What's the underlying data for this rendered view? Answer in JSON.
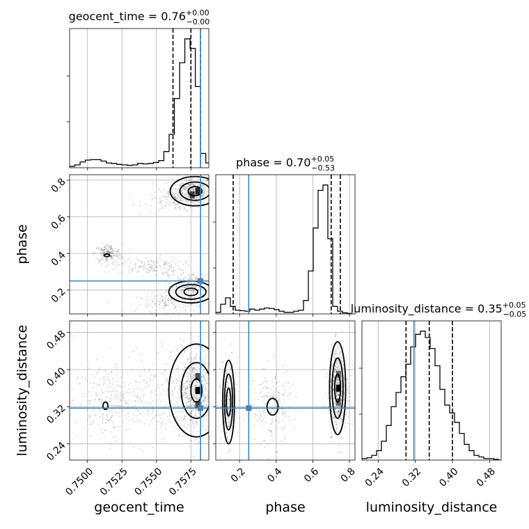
{
  "chart_data": {
    "type": "corner",
    "parameters": [
      "geocent_time",
      "phase",
      "luminosity_distance"
    ],
    "axis_labels": [
      "geocent_time",
      "phase",
      "luminosity_distance"
    ],
    "ranges": [
      [
        0.7487,
        0.7588
      ],
      [
        0.07,
        0.83
      ],
      [
        0.205,
        0.505
      ]
    ],
    "ticks": [
      {
        "values": [
          0.75,
          0.7525,
          0.755,
          0.7575
        ],
        "labels": [
          "0.7500",
          "0.7525",
          "0.7550",
          "0.7575"
        ]
      },
      {
        "values": [
          0.2,
          0.4,
          0.6,
          0.8
        ],
        "labels": [
          "0.2",
          "0.4",
          "0.6",
          "0.8"
        ]
      },
      {
        "values": [
          0.24,
          0.32,
          0.4,
          0.48
        ],
        "labels": [
          "0.24",
          "0.32",
          "0.40",
          "0.48"
        ]
      }
    ],
    "titles": [
      {
        "text": "geocent_time = 0.76",
        "sup": "+0.00",
        "sub": "−0.00"
      },
      {
        "text": "phase = 0.70",
        "sup": "+0.05",
        "sub": "−0.53"
      },
      {
        "text": "luminosity_distance = 0.35",
        "sup": "+0.05",
        "sub": "−0.05"
      }
    ],
    "truths": [
      0.7582,
      0.25,
      0.317
    ],
    "quantiles": [
      [
        0.7562,
        0.7575,
        0.7582
      ],
      [
        0.165,
        0.7,
        0.75
      ],
      [
        0.3,
        0.35,
        0.4
      ]
    ],
    "histograms": [
      {
        "bin_edges_from": 0.7487,
        "bin_width": 0.00038,
        "counts": [
          0.3,
          0.6,
          1.2,
          1.6,
          1.7,
          1.7,
          1.4,
          1.0,
          0.9,
          0.7,
          0.6,
          0.5,
          0.6,
          0.9,
          0.8,
          0.9,
          1.1,
          1.5,
          3.4,
          7.0,
          14.5,
          22.0,
          27.0,
          25.0,
          17.0,
          3.0,
          1.0
        ]
      },
      {
        "bin_edges_from": 0.07,
        "bin_width": 0.0266,
        "counts": [
          0.3,
          1.8,
          3.0,
          1.4,
          0.7,
          0.6,
          0.5,
          0.9,
          0.7,
          0.9,
          1.1,
          1.0,
          0.8,
          0.5,
          0.3,
          0.3,
          0.5,
          0.7,
          2.5,
          8.0,
          16.0,
          23.0,
          24.0,
          14.0,
          1.4,
          0.5,
          0.2,
          0.1
        ]
      },
      {
        "bin_edges_from": 0.205,
        "bin_width": 0.0105,
        "counts": [
          0.1,
          0.15,
          0.3,
          0.6,
          1.2,
          2.2,
          3.4,
          4.3,
          5.3,
          6.1,
          7.2,
          8.0,
          8.2,
          7.8,
          7.1,
          6.0,
          4.5,
          3.5,
          3.0,
          2.4,
          1.7,
          1.0,
          0.6,
          0.3,
          0.2,
          0.1,
          0.1,
          0.05,
          0.0
        ]
      }
    ],
    "sample_clusters": [
      {
        "pair": [
          0,
          1
        ],
        "cx": 0.7575,
        "cy": 0.74,
        "sx": 0.0008,
        "sy": 0.04,
        "n": 380
      },
      {
        "pair": [
          0,
          1
        ],
        "cx": 0.7565,
        "cy": 0.69,
        "sx": 0.0012,
        "sy": 0.03,
        "n": 120
      },
      {
        "pair": [
          0,
          1
        ],
        "cx": 0.7515,
        "cy": 0.4,
        "sx": 0.0005,
        "sy": 0.025,
        "n": 180
      },
      {
        "pair": [
          0,
          1
        ],
        "cx": 0.7545,
        "cy": 0.33,
        "sx": 0.0012,
        "sy": 0.025,
        "n": 160
      },
      {
        "pair": [
          0,
          1
        ],
        "cx": 0.7575,
        "cy": 0.22,
        "sx": 0.0008,
        "sy": 0.04,
        "n": 220
      },
      {
        "pair": [
          0,
          1
        ],
        "cx": 0.756,
        "cy": 0.13,
        "sx": 0.0012,
        "sy": 0.025,
        "n": 150
      },
      {
        "pair": [
          0,
          2
        ],
        "cx": 0.7578,
        "cy": 0.355,
        "sx": 0.0007,
        "sy": 0.045,
        "n": 700
      },
      {
        "pair": [
          0,
          2
        ],
        "cx": 0.7514,
        "cy": 0.33,
        "sx": 0.0012,
        "sy": 0.04,
        "n": 260
      },
      {
        "pair": [
          0,
          2
        ],
        "cx": 0.7545,
        "cy": 0.34,
        "sx": 0.0014,
        "sy": 0.05,
        "n": 180
      },
      {
        "pair": [
          1,
          2
        ],
        "cx": 0.735,
        "cy": 0.36,
        "sx": 0.025,
        "sy": 0.045,
        "n": 700
      },
      {
        "pair": [
          1,
          2
        ],
        "cx": 0.14,
        "cy": 0.33,
        "sx": 0.02,
        "sy": 0.045,
        "n": 300
      },
      {
        "pair": [
          1,
          2
        ],
        "cx": 0.38,
        "cy": 0.32,
        "sx": 0.05,
        "sy": 0.04,
        "n": 230
      }
    ],
    "contours": [
      {
        "pair": [
          0,
          1
        ],
        "cx": 0.7578,
        "cy": 0.74,
        "rx": [
          0.0005,
          0.0011,
          0.0018
        ],
        "ry": [
          0.025,
          0.05,
          0.08
        ]
      },
      {
        "pair": [
          0,
          1
        ],
        "cx": 0.7575,
        "cy": 0.19,
        "rx": [
          0.0005,
          0.0011,
          0.0016
        ],
        "ry": [
          0.02,
          0.04,
          0.06
        ]
      },
      {
        "pair": [
          0,
          1
        ],
        "cx": 0.7514,
        "cy": 0.39,
        "rx": [
          0.0002
        ],
        "ry": [
          0.007
        ]
      },
      {
        "pair": [
          0,
          2
        ],
        "cx": 0.7579,
        "cy": 0.355,
        "rx": [
          0.0004,
          0.0011,
          0.002
        ],
        "ry": [
          0.025,
          0.06,
          0.1
        ]
      },
      {
        "pair": [
          0,
          2
        ],
        "cx": 0.7513,
        "cy": 0.322,
        "rx": [
          0.00018
        ],
        "ry": [
          0.008
        ]
      },
      {
        "pair": [
          1,
          2
        ],
        "cx": 0.735,
        "cy": 0.36,
        "rx": [
          0.016,
          0.03,
          0.044
        ],
        "ry": [
          0.03,
          0.065,
          0.1
        ]
      },
      {
        "pair": [
          1,
          2
        ],
        "cx": 0.14,
        "cy": 0.33,
        "rx": [
          0.012,
          0.022,
          0.032
        ],
        "ry": [
          0.03,
          0.06,
          0.09
        ]
      },
      {
        "pair": [
          1,
          2
        ],
        "cx": 0.38,
        "cy": 0.32,
        "rx": [
          0.03
        ],
        "ry": [
          0.018
        ]
      }
    ],
    "density_cells": [
      {
        "pair": [
          0,
          1
        ],
        "cx": 0.758,
        "cy": 0.74,
        "shade": 0.85
      },
      {
        "pair": [
          0,
          1
        ],
        "cx": 0.7576,
        "cy": 0.72,
        "shade": 0.75
      },
      {
        "pair": [
          0,
          2
        ],
        "cx": 0.758,
        "cy": 0.355,
        "shade": 1.0
      },
      {
        "pair": [
          0,
          2
        ],
        "cx": 0.758,
        "cy": 0.385,
        "shade": 0.7
      },
      {
        "pair": [
          0,
          2
        ],
        "cx": 0.758,
        "cy": 0.325,
        "shade": 0.7
      },
      {
        "pair": [
          1,
          2
        ],
        "cx": 0.74,
        "cy": 0.36,
        "shade": 1.0
      },
      {
        "pair": [
          1,
          2
        ],
        "cx": 0.74,
        "cy": 0.39,
        "shade": 0.6
      },
      {
        "pair": [
          1,
          2
        ],
        "cx": 0.74,
        "cy": 0.33,
        "shade": 0.6
      }
    ],
    "colors": {
      "truth": "#4682b4",
      "hist": "#000000",
      "grid": "#b0b0b0",
      "scatter": "#000000"
    }
  }
}
